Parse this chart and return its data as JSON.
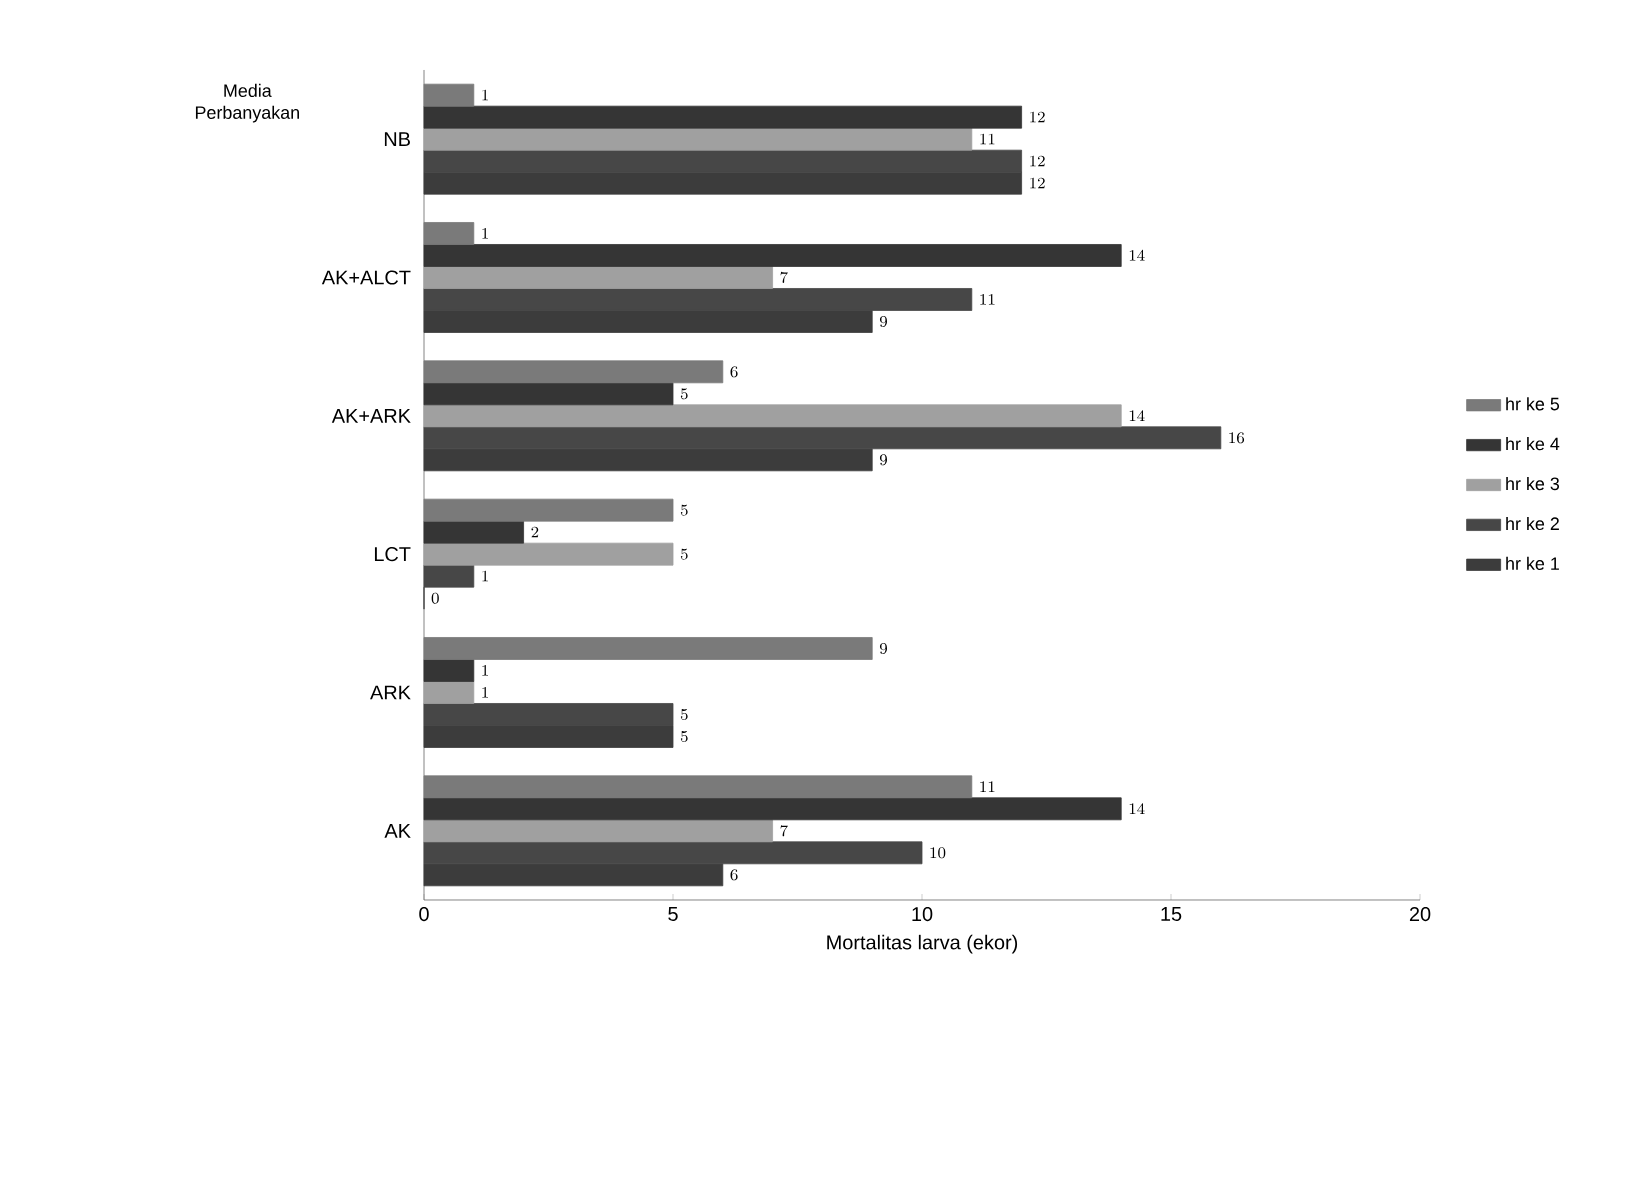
{
  "chart_data": {
    "type": "bar",
    "orientation": "horizontal",
    "xlabel": "Mortalitas larva (ekor)",
    "ylabel": "Media Perbanyakan",
    "categories": [
      "NB",
      "AK+ALCT",
      "AK+ARK",
      "LCT",
      "ARK",
      "AK"
    ],
    "series": [
      {
        "name": "hr ke 5",
        "color": "#7a7a7a",
        "values": [
          1,
          1,
          6,
          5,
          9,
          11
        ]
      },
      {
        "name": "hr ke 4",
        "color": "#353535",
        "values": [
          12,
          14,
          5,
          2,
          1,
          14
        ]
      },
      {
        "name": "hr ke 3",
        "color": "#a0a0a0",
        "values": [
          11,
          7,
          14,
          5,
          1,
          7
        ]
      },
      {
        "name": "hr ke 2",
        "color": "#474747",
        "values": [
          12,
          11,
          16,
          1,
          5,
          10
        ]
      },
      {
        "name": "hr ke 1",
        "color": "#3c3c3c",
        "values": [
          12,
          9,
          9,
          0,
          5,
          6
        ]
      }
    ],
    "xlim": [
      0,
      20
    ],
    "xticks": [
      0,
      5,
      10,
      15,
      20
    ],
    "data_labels": true,
    "legend": "right"
  }
}
